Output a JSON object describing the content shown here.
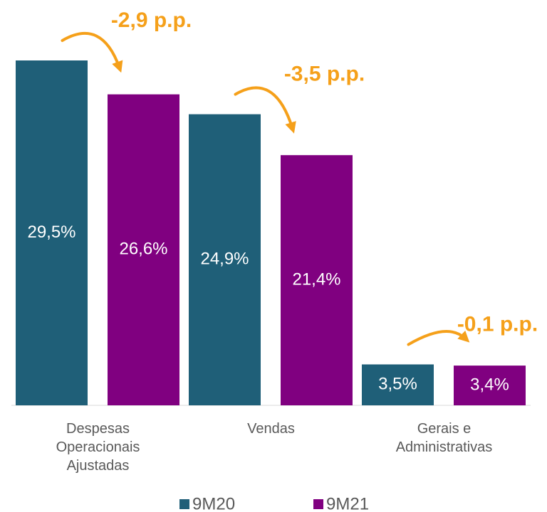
{
  "chart_data": {
    "type": "bar",
    "categories": [
      "Despesas Operacionais Ajustadas",
      "Vendas",
      "Gerais e Administrativas"
    ],
    "series": [
      {
        "name": "9M20",
        "color": "#1f5f78",
        "values": [
          29.5,
          24.9,
          3.5
        ],
        "value_labels": [
          "29,5%",
          "24,9%",
          "3,5%"
        ]
      },
      {
        "name": "9M21",
        "color": "#800080",
        "values": [
          26.6,
          21.4,
          3.4
        ],
        "value_labels": [
          "26,6%",
          "21,4%",
          "3,4%"
        ]
      }
    ],
    "annotations": [
      "-2,9 p.p.",
      "-3,5 p.p.",
      "-0,1 p.p."
    ],
    "annotation_color": "#f5a01a",
    "legend": "bottom"
  }
}
